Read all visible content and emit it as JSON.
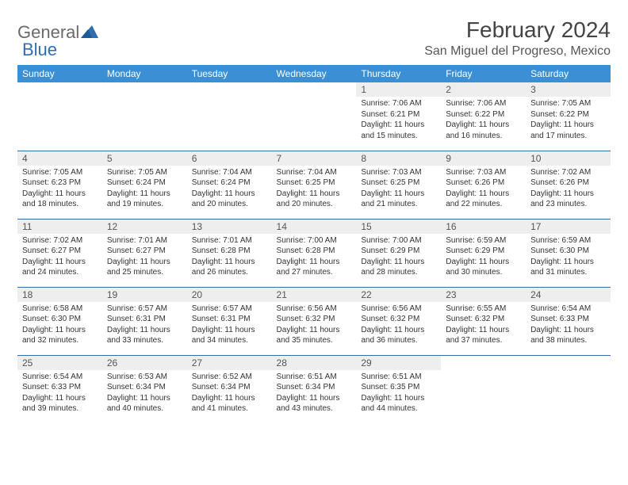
{
  "brand": {
    "part1": "General",
    "part2": "Blue"
  },
  "title": "February 2024",
  "location": "San Miguel del Progreso, Mexico",
  "colors": {
    "header_bg": "#3b8fd4",
    "header_text": "#ffffff",
    "row_border": "#2f6fb0",
    "daynum_bg": "#eeeeee",
    "logo_blue": "#2f6fb0",
    "logo_gray": "#6a6a6a",
    "text": "#333333"
  },
  "weekdays": [
    "Sunday",
    "Monday",
    "Tuesday",
    "Wednesday",
    "Thursday",
    "Friday",
    "Saturday"
  ],
  "typography": {
    "title_fontsize": 28,
    "location_fontsize": 16,
    "weekday_fontsize": 12,
    "daynum_fontsize": 12,
    "info_fontsize": 10
  },
  "weeks": [
    [
      {
        "n": "",
        "sr": "",
        "ss": "",
        "dl": ""
      },
      {
        "n": "",
        "sr": "",
        "ss": "",
        "dl": ""
      },
      {
        "n": "",
        "sr": "",
        "ss": "",
        "dl": ""
      },
      {
        "n": "",
        "sr": "",
        "ss": "",
        "dl": ""
      },
      {
        "n": "1",
        "sr": "Sunrise: 7:06 AM",
        "ss": "Sunset: 6:21 PM",
        "dl": "Daylight: 11 hours and 15 minutes."
      },
      {
        "n": "2",
        "sr": "Sunrise: 7:06 AM",
        "ss": "Sunset: 6:22 PM",
        "dl": "Daylight: 11 hours and 16 minutes."
      },
      {
        "n": "3",
        "sr": "Sunrise: 7:05 AM",
        "ss": "Sunset: 6:22 PM",
        "dl": "Daylight: 11 hours and 17 minutes."
      }
    ],
    [
      {
        "n": "4",
        "sr": "Sunrise: 7:05 AM",
        "ss": "Sunset: 6:23 PM",
        "dl": "Daylight: 11 hours and 18 minutes."
      },
      {
        "n": "5",
        "sr": "Sunrise: 7:05 AM",
        "ss": "Sunset: 6:24 PM",
        "dl": "Daylight: 11 hours and 19 minutes."
      },
      {
        "n": "6",
        "sr": "Sunrise: 7:04 AM",
        "ss": "Sunset: 6:24 PM",
        "dl": "Daylight: 11 hours and 20 minutes."
      },
      {
        "n": "7",
        "sr": "Sunrise: 7:04 AM",
        "ss": "Sunset: 6:25 PM",
        "dl": "Daylight: 11 hours and 20 minutes."
      },
      {
        "n": "8",
        "sr": "Sunrise: 7:03 AM",
        "ss": "Sunset: 6:25 PM",
        "dl": "Daylight: 11 hours and 21 minutes."
      },
      {
        "n": "9",
        "sr": "Sunrise: 7:03 AM",
        "ss": "Sunset: 6:26 PM",
        "dl": "Daylight: 11 hours and 22 minutes."
      },
      {
        "n": "10",
        "sr": "Sunrise: 7:02 AM",
        "ss": "Sunset: 6:26 PM",
        "dl": "Daylight: 11 hours and 23 minutes."
      }
    ],
    [
      {
        "n": "11",
        "sr": "Sunrise: 7:02 AM",
        "ss": "Sunset: 6:27 PM",
        "dl": "Daylight: 11 hours and 24 minutes."
      },
      {
        "n": "12",
        "sr": "Sunrise: 7:01 AM",
        "ss": "Sunset: 6:27 PM",
        "dl": "Daylight: 11 hours and 25 minutes."
      },
      {
        "n": "13",
        "sr": "Sunrise: 7:01 AM",
        "ss": "Sunset: 6:28 PM",
        "dl": "Daylight: 11 hours and 26 minutes."
      },
      {
        "n": "14",
        "sr": "Sunrise: 7:00 AM",
        "ss": "Sunset: 6:28 PM",
        "dl": "Daylight: 11 hours and 27 minutes."
      },
      {
        "n": "15",
        "sr": "Sunrise: 7:00 AM",
        "ss": "Sunset: 6:29 PM",
        "dl": "Daylight: 11 hours and 28 minutes."
      },
      {
        "n": "16",
        "sr": "Sunrise: 6:59 AM",
        "ss": "Sunset: 6:29 PM",
        "dl": "Daylight: 11 hours and 30 minutes."
      },
      {
        "n": "17",
        "sr": "Sunrise: 6:59 AM",
        "ss": "Sunset: 6:30 PM",
        "dl": "Daylight: 11 hours and 31 minutes."
      }
    ],
    [
      {
        "n": "18",
        "sr": "Sunrise: 6:58 AM",
        "ss": "Sunset: 6:30 PM",
        "dl": "Daylight: 11 hours and 32 minutes."
      },
      {
        "n": "19",
        "sr": "Sunrise: 6:57 AM",
        "ss": "Sunset: 6:31 PM",
        "dl": "Daylight: 11 hours and 33 minutes."
      },
      {
        "n": "20",
        "sr": "Sunrise: 6:57 AM",
        "ss": "Sunset: 6:31 PM",
        "dl": "Daylight: 11 hours and 34 minutes."
      },
      {
        "n": "21",
        "sr": "Sunrise: 6:56 AM",
        "ss": "Sunset: 6:32 PM",
        "dl": "Daylight: 11 hours and 35 minutes."
      },
      {
        "n": "22",
        "sr": "Sunrise: 6:56 AM",
        "ss": "Sunset: 6:32 PM",
        "dl": "Daylight: 11 hours and 36 minutes."
      },
      {
        "n": "23",
        "sr": "Sunrise: 6:55 AM",
        "ss": "Sunset: 6:32 PM",
        "dl": "Daylight: 11 hours and 37 minutes."
      },
      {
        "n": "24",
        "sr": "Sunrise: 6:54 AM",
        "ss": "Sunset: 6:33 PM",
        "dl": "Daylight: 11 hours and 38 minutes."
      }
    ],
    [
      {
        "n": "25",
        "sr": "Sunrise: 6:54 AM",
        "ss": "Sunset: 6:33 PM",
        "dl": "Daylight: 11 hours and 39 minutes."
      },
      {
        "n": "26",
        "sr": "Sunrise: 6:53 AM",
        "ss": "Sunset: 6:34 PM",
        "dl": "Daylight: 11 hours and 40 minutes."
      },
      {
        "n": "27",
        "sr": "Sunrise: 6:52 AM",
        "ss": "Sunset: 6:34 PM",
        "dl": "Daylight: 11 hours and 41 minutes."
      },
      {
        "n": "28",
        "sr": "Sunrise: 6:51 AM",
        "ss": "Sunset: 6:34 PM",
        "dl": "Daylight: 11 hours and 43 minutes."
      },
      {
        "n": "29",
        "sr": "Sunrise: 6:51 AM",
        "ss": "Sunset: 6:35 PM",
        "dl": "Daylight: 11 hours and 44 minutes."
      },
      {
        "n": "",
        "sr": "",
        "ss": "",
        "dl": ""
      },
      {
        "n": "",
        "sr": "",
        "ss": "",
        "dl": ""
      }
    ]
  ]
}
